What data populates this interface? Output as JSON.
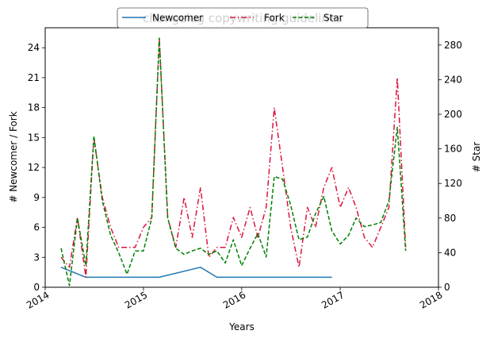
{
  "chart_data": {
    "type": "line",
    "title": "",
    "watermark": "changelog copywriting guidelines",
    "xlabel": "Years",
    "ylabel_left": "# Newcomer / Fork",
    "ylabel_right": "# Star",
    "xlim": [
      "2014-01-01",
      "2018-01-01"
    ],
    "ylim_left": [
      0,
      26
    ],
    "ylim_right": [
      0,
      300
    ],
    "x_ticks": [
      "2014",
      "2015",
      "2016",
      "2017",
      "2018"
    ],
    "y_ticks_left": [
      0,
      3,
      6,
      9,
      12,
      15,
      18,
      21,
      24
    ],
    "y_ticks_right": [
      0,
      40,
      80,
      120,
      160,
      200,
      240,
      280
    ],
    "grid": false,
    "legend_position": "top-center",
    "legend": [
      "Newcomer",
      "Fork",
      "Star"
    ],
    "series": [
      {
        "name": "Newcomer",
        "axis": "left",
        "color": "#1f77b4",
        "style": "solid",
        "x": [
          "2014-03-01",
          "2014-06-01",
          "2015-03-01",
          "2015-08-01",
          "2015-10-01",
          "2016-12-01"
        ],
        "values": [
          2,
          1,
          1,
          2,
          1,
          1
        ]
      },
      {
        "name": "Fork",
        "axis": "left",
        "color": "#dc143c",
        "style": "dashdot",
        "x": [
          "2014-03-01",
          "2014-04-01",
          "2014-05-01",
          "2014-06-01",
          "2014-07-01",
          "2014-08-01",
          "2014-09-01",
          "2014-10-01",
          "2014-11-01",
          "2014-12-01",
          "2015-01-01",
          "2015-02-01",
          "2015-03-01",
          "2015-04-01",
          "2015-05-01",
          "2015-06-01",
          "2015-07-01",
          "2015-08-01",
          "2015-09-01",
          "2015-10-01",
          "2015-11-01",
          "2015-12-01",
          "2016-01-01",
          "2016-02-01",
          "2016-03-01",
          "2016-04-01",
          "2016-05-01",
          "2016-06-01",
          "2016-07-01",
          "2016-08-01",
          "2016-09-01",
          "2016-10-01",
          "2016-11-01",
          "2016-12-01",
          "2017-01-01",
          "2017-02-01",
          "2017-03-01",
          "2017-04-01",
          "2017-05-01",
          "2017-06-01",
          "2017-07-01",
          "2017-08-01",
          "2017-09-01"
        ],
        "values": [
          3,
          2,
          7,
          1,
          15,
          9,
          6,
          4,
          4,
          4,
          6,
          7,
          25,
          7,
          4,
          9,
          5,
          10,
          3,
          4,
          4,
          7,
          5,
          8,
          5,
          8,
          18,
          12,
          6,
          2,
          8,
          6,
          10,
          12,
          8,
          10,
          8,
          5,
          4,
          6,
          8,
          21,
          4
        ]
      },
      {
        "name": "Star",
        "axis": "right",
        "color": "#008000",
        "style": "dashed",
        "x": [
          "2014-03-01",
          "2014-04-01",
          "2014-05-01",
          "2014-06-01",
          "2014-07-01",
          "2014-08-01",
          "2014-09-01",
          "2014-10-01",
          "2014-11-01",
          "2014-12-01",
          "2015-01-01",
          "2015-02-01",
          "2015-03-01",
          "2015-04-01",
          "2015-05-01",
          "2015-06-01",
          "2015-07-01",
          "2015-08-01",
          "2015-09-01",
          "2015-10-01",
          "2015-11-01",
          "2015-12-01",
          "2016-01-01",
          "2016-02-01",
          "2016-03-01",
          "2016-04-01",
          "2016-05-01",
          "2016-06-01",
          "2016-07-01",
          "2016-08-01",
          "2016-09-01",
          "2016-10-01",
          "2016-11-01",
          "2016-12-01",
          "2017-01-01",
          "2017-02-01",
          "2017-03-01",
          "2017-04-01",
          "2017-05-01",
          "2017-06-01",
          "2017-07-01",
          "2017-08-01",
          "2017-09-01"
        ],
        "values": [
          45,
          2,
          80,
          25,
          175,
          100,
          60,
          40,
          15,
          42,
          42,
          80,
          288,
          80,
          45,
          38,
          42,
          45,
          38,
          42,
          28,
          55,
          25,
          45,
          62,
          35,
          128,
          125,
          95,
          55,
          58,
          85,
          105,
          65,
          50,
          60,
          80,
          70,
          72,
          75,
          100,
          185,
          42
        ]
      }
    ]
  }
}
